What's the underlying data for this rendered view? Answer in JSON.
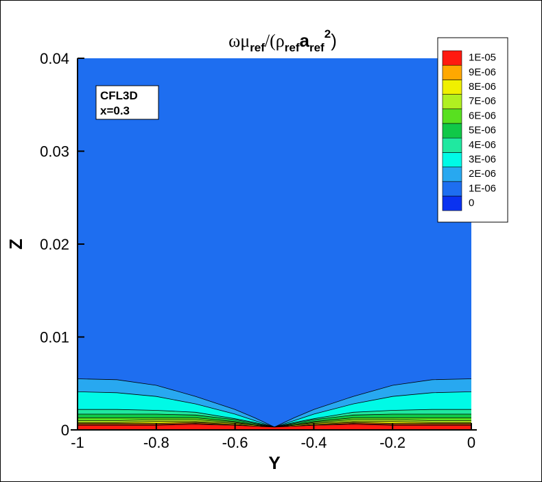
{
  "chart_data": {
    "type": "contour",
    "title": [
      {
        "text": "ωμ",
        "family": "serif"
      },
      {
        "text": "ref",
        "script": "sub",
        "weight": "bold"
      },
      {
        "text": "/(ρ",
        "family": "serif"
      },
      {
        "text": "ref",
        "script": "sub",
        "weight": "bold"
      },
      {
        "text": "a",
        "weight": "bold"
      },
      {
        "text": "ref",
        "script": "sub",
        "weight": "bold"
      },
      {
        "text": "2",
        "script": "sup",
        "weight": "bold"
      },
      {
        "text": ")"
      }
    ],
    "xlabel": "Y",
    "ylabel": "Z",
    "annotation": [
      "CFL3D",
      "x=0.3"
    ],
    "xlim": [
      -1,
      0
    ],
    "xticks": [
      -1,
      -0.8,
      -0.6,
      -0.4,
      -0.2,
      0
    ],
    "ylim": [
      0,
      0.04
    ],
    "yticks": [
      0,
      0.01,
      0.02,
      0.03,
      0.04
    ],
    "levels": [
      0,
      {
        "value": 1e-06,
        "label": "1E-06"
      },
      {
        "value": 2e-06,
        "label": "2E-06"
      },
      {
        "value": 3e-06,
        "label": "3E-06"
      },
      {
        "value": 4e-06,
        "label": "4E-06"
      },
      {
        "value": 5e-06,
        "label": "5E-06"
      },
      {
        "value": 6e-06,
        "label": "6E-06"
      },
      {
        "value": 7e-06,
        "label": "7E-06"
      },
      {
        "value": 8e-06,
        "label": "8E-06"
      },
      {
        "value": 9e-06,
        "label": "9E-06"
      },
      {
        "value": 1e-05,
        "label": "1E-05"
      }
    ],
    "level_colors": [
      "#0a32f0",
      "#1e6ef0",
      "#28a8f0",
      "#00fae6",
      "#20e8a0",
      "#10c848",
      "#58e020",
      "#b0f020",
      "#f0f000",
      "#ffa800",
      "#ff1a10"
    ],
    "x": [
      -1,
      -0.9,
      -0.8,
      -0.7,
      -0.6,
      -0.55,
      -0.5,
      -0.45,
      -0.4,
      -0.3,
      -0.2,
      -0.1,
      0
    ],
    "contour_z": [
      [
        0.0055,
        0.0054,
        0.0048,
        0.0036,
        0.0022,
        0.0013,
        0.0003,
        0.0013,
        0.0022,
        0.0036,
        0.0048,
        0.0054,
        0.0055
      ],
      [
        0.0041,
        0.004,
        0.0036,
        0.0028,
        0.0017,
        0.001,
        0.0003,
        0.001,
        0.0017,
        0.0028,
        0.0036,
        0.004,
        0.0041
      ],
      [
        0.0022,
        0.0022,
        0.0021,
        0.0019,
        0.0012,
        0.0008,
        0.0003,
        0.0008,
        0.0012,
        0.0019,
        0.0021,
        0.0022,
        0.0022
      ],
      [
        0.0017,
        0.0017,
        0.0017,
        0.0016,
        0.0011,
        0.0007,
        0.0003,
        0.0007,
        0.0011,
        0.0016,
        0.0017,
        0.0017,
        0.0017
      ],
      [
        0.0013,
        0.0013,
        0.0013,
        0.0013,
        0.0009,
        0.0006,
        0.0003,
        0.0006,
        0.0009,
        0.0013,
        0.0013,
        0.0013,
        0.0013
      ],
      [
        0.001,
        0.001,
        0.0011,
        0.0011,
        0.0008,
        0.0005,
        0.0003,
        0.0005,
        0.0008,
        0.0011,
        0.0011,
        0.001,
        0.001
      ],
      [
        0.0008,
        0.0008,
        0.0009,
        0.0009,
        0.0007,
        0.0005,
        0.0003,
        0.0005,
        0.0007,
        0.0009,
        0.0009,
        0.0008,
        0.0008
      ],
      [
        0.0007,
        0.0007,
        0.0007,
        0.0008,
        0.0006,
        0.0004,
        0.0003,
        0.0004,
        0.0006,
        0.0008,
        0.0007,
        0.0007,
        0.0007
      ],
      [
        0.0006,
        0.0006,
        0.0006,
        0.0007,
        0.0005,
        0.0004,
        0.0003,
        0.0004,
        0.0005,
        0.0007,
        0.0006,
        0.0006,
        0.0006
      ],
      [
        0.0005,
        0.0005,
        0.0005,
        0.0006,
        0.0005,
        0.0004,
        0.0003,
        0.0004,
        0.0005,
        0.0006,
        0.0005,
        0.0005,
        0.0005
      ]
    ]
  }
}
